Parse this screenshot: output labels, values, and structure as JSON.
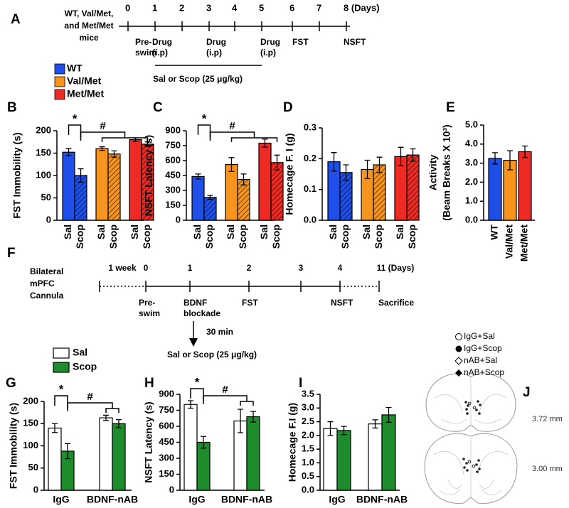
{
  "timeline_a": {
    "panel": "A",
    "subject": [
      "WT, Val/Met,",
      "and Met/Met",
      "mice"
    ],
    "days": [
      "0",
      "1",
      "2",
      "3",
      "4",
      "5",
      "6",
      "7",
      "8 (Days)"
    ],
    "events": [
      [
        "Pre-",
        "swim"
      ],
      [
        "Drug",
        "(i.p)"
      ],
      [
        "Drug",
        "(i.p)"
      ],
      [
        "Drug",
        "(i.p)"
      ],
      [
        "FST"
      ],
      [
        "NSFT"
      ]
    ],
    "treatment": "Sal or Scop (25 μg/kg)"
  },
  "timeline_f": {
    "panel": "F",
    "subject": [
      "Bilateral",
      "mPFC",
      "Cannula"
    ],
    "marks": [
      "1 week",
      "0",
      "1",
      "2",
      "3",
      "4",
      "11 (Days)"
    ],
    "events": [
      [
        "Pre-",
        "swim"
      ],
      [
        "BDNF",
        "blockade"
      ],
      [
        "FST"
      ],
      [
        "NSFT"
      ],
      [
        "Sacrifice"
      ]
    ],
    "delay": "30 min",
    "treatment": "Sal or Scop (25 μg/kg)"
  },
  "panel_j": {
    "panel": "J",
    "legend": [
      "IgG+Sal",
      "IgG+Scop",
      "nAB+Sal",
      "nAB+Scop"
    ],
    "sections": [
      "3.72 mm",
      "3.00 mm"
    ]
  },
  "chart_data": [
    {
      "type": "bar",
      "panel": "B",
      "ylabel": "FST Immobility (s)",
      "ylim": [
        0,
        200
      ],
      "yticks": [
        0,
        50,
        100,
        150,
        200
      ],
      "categories": [
        "Sal",
        "Scop"
      ],
      "hatch": [
        false,
        true
      ],
      "series": [
        {
          "name": "WT",
          "color": "#1f4fe8",
          "values": [
            152,
            100
          ],
          "errors": [
            8,
            15
          ]
        },
        {
          "name": "Val/Met",
          "color": "#f7941d",
          "values": [
            160,
            148
          ],
          "errors": [
            4,
            7
          ]
        },
        {
          "name": "Met/Met",
          "color": "#ee2a24",
          "values": [
            180,
            170
          ],
          "errors": [
            4,
            5
          ]
        }
      ],
      "annotations": [
        "*",
        "#"
      ]
    },
    {
      "type": "bar",
      "panel": "C",
      "ylabel": "NSFT Latency (s)",
      "ylim": [
        0,
        900
      ],
      "yticks": [
        0,
        150,
        300,
        450,
        600,
        750,
        900
      ],
      "categories": [
        "Sal",
        "Scop"
      ],
      "hatch": [
        false,
        true
      ],
      "series": [
        {
          "color": "#1f4fe8",
          "values": [
            440,
            230
          ],
          "errors": [
            25,
            20
          ]
        },
        {
          "color": "#f7941d",
          "values": [
            560,
            410
          ],
          "errors": [
            70,
            55
          ]
        },
        {
          "color": "#ee2a24",
          "values": [
            775,
            580
          ],
          "errors": [
            40,
            75
          ]
        }
      ],
      "annotations": [
        "*",
        "#"
      ]
    },
    {
      "type": "bar",
      "panel": "D",
      "ylabel": "Homecage F. I (g)",
      "ylim": [
        0,
        0.3
      ],
      "yticks": [
        {
          "value": 0,
          "label": "0.0"
        },
        0.1,
        0.2,
        0.3
      ],
      "categories": [
        "Sal",
        "Scop"
      ],
      "hatch": [
        false,
        true
      ],
      "series": [
        {
          "color": "#1f4fe8",
          "values": [
            0.19,
            0.155
          ],
          "errors": [
            0.03,
            0.025
          ]
        },
        {
          "color": "#f7941d",
          "values": [
            0.165,
            0.18
          ],
          "errors": [
            0.03,
            0.025
          ]
        },
        {
          "color": "#ee2a24",
          "values": [
            0.207,
            0.212
          ],
          "errors": [
            0.03,
            0.02
          ]
        }
      ]
    },
    {
      "type": "bar",
      "panel": "E",
      "ylabel": [
        "Activity",
        "(Beam Breaks X 10³)"
      ],
      "ylim": [
        0,
        5
      ],
      "yticks": [
        {
          "value": 0,
          "label": "0.0"
        },
        {
          "value": 1,
          "label": "1.0"
        },
        {
          "value": 2,
          "label": "2.0"
        },
        {
          "value": 3,
          "label": "3.0"
        },
        {
          "value": 4,
          "label": "4.0"
        },
        {
          "value": 5,
          "label": "5.0"
        }
      ],
      "categories": [
        "WT",
        "Val/Met",
        "Met/Met"
      ],
      "colors": [
        "#1f4fe8",
        "#f7941d",
        "#ee2a24"
      ],
      "values": [
        3.25,
        3.15,
        3.6
      ],
      "errors": [
        0.3,
        0.5,
        0.3
      ]
    },
    {
      "type": "bar",
      "panel": "G",
      "ylabel": "FST Immobility (s)",
      "ylim": [
        0,
        200
      ],
      "yticks": [
        0,
        50,
        100,
        150,
        200
      ],
      "categories": [
        "IgG",
        "BDNF-nAB"
      ],
      "series": [
        {
          "name": "Sal",
          "color": "#ffffff",
          "values": [
            140,
            163
          ],
          "errors": [
            10,
            6
          ]
        },
        {
          "name": "Scop",
          "color": "#1e8b2c",
          "values": [
            88,
            150
          ],
          "errors": [
            17,
            9
          ]
        }
      ],
      "annotations": [
        "*",
        "#"
      ]
    },
    {
      "type": "bar",
      "panel": "H",
      "ylabel": "NSFT Latency (s)",
      "ylim": [
        0,
        900
      ],
      "yticks": [
        0,
        150,
        300,
        450,
        600,
        750,
        900
      ],
      "categories": [
        "IgG",
        "BDNF-nAB"
      ],
      "series": [
        {
          "color": "#ffffff",
          "values": [
            805,
            650
          ],
          "errors": [
            35,
            110
          ]
        },
        {
          "color": "#1e8b2c",
          "values": [
            450,
            690
          ],
          "errors": [
            55,
            50
          ]
        }
      ],
      "annotations": [
        "*",
        "#"
      ]
    },
    {
      "type": "bar",
      "panel": "I",
      "ylabel": "Homecage F.I (g)",
      "ylim": [
        0,
        3.5
      ],
      "yticks": [
        {
          "value": 0,
          "label": "0.0"
        },
        {
          "value": 0.5,
          "label": "0.5"
        },
        {
          "value": 1,
          "label": "1.0"
        },
        {
          "value": 1.5,
          "label": "1.5"
        },
        {
          "value": 2,
          "label": "2.0"
        },
        {
          "value": 2.5,
          "label": "2.5"
        },
        {
          "value": 3,
          "label": "3.0"
        },
        {
          "value": 3.5,
          "label": "3.5"
        }
      ],
      "categories": [
        "IgG",
        "BDNF-nAB"
      ],
      "series": [
        {
          "color": "#ffffff",
          "values": [
            2.25,
            2.42
          ],
          "errors": [
            0.25,
            0.15
          ]
        },
        {
          "color": "#1e8b2c",
          "values": [
            2.18,
            2.75
          ],
          "errors": [
            0.15,
            0.27
          ]
        }
      ]
    }
  ]
}
